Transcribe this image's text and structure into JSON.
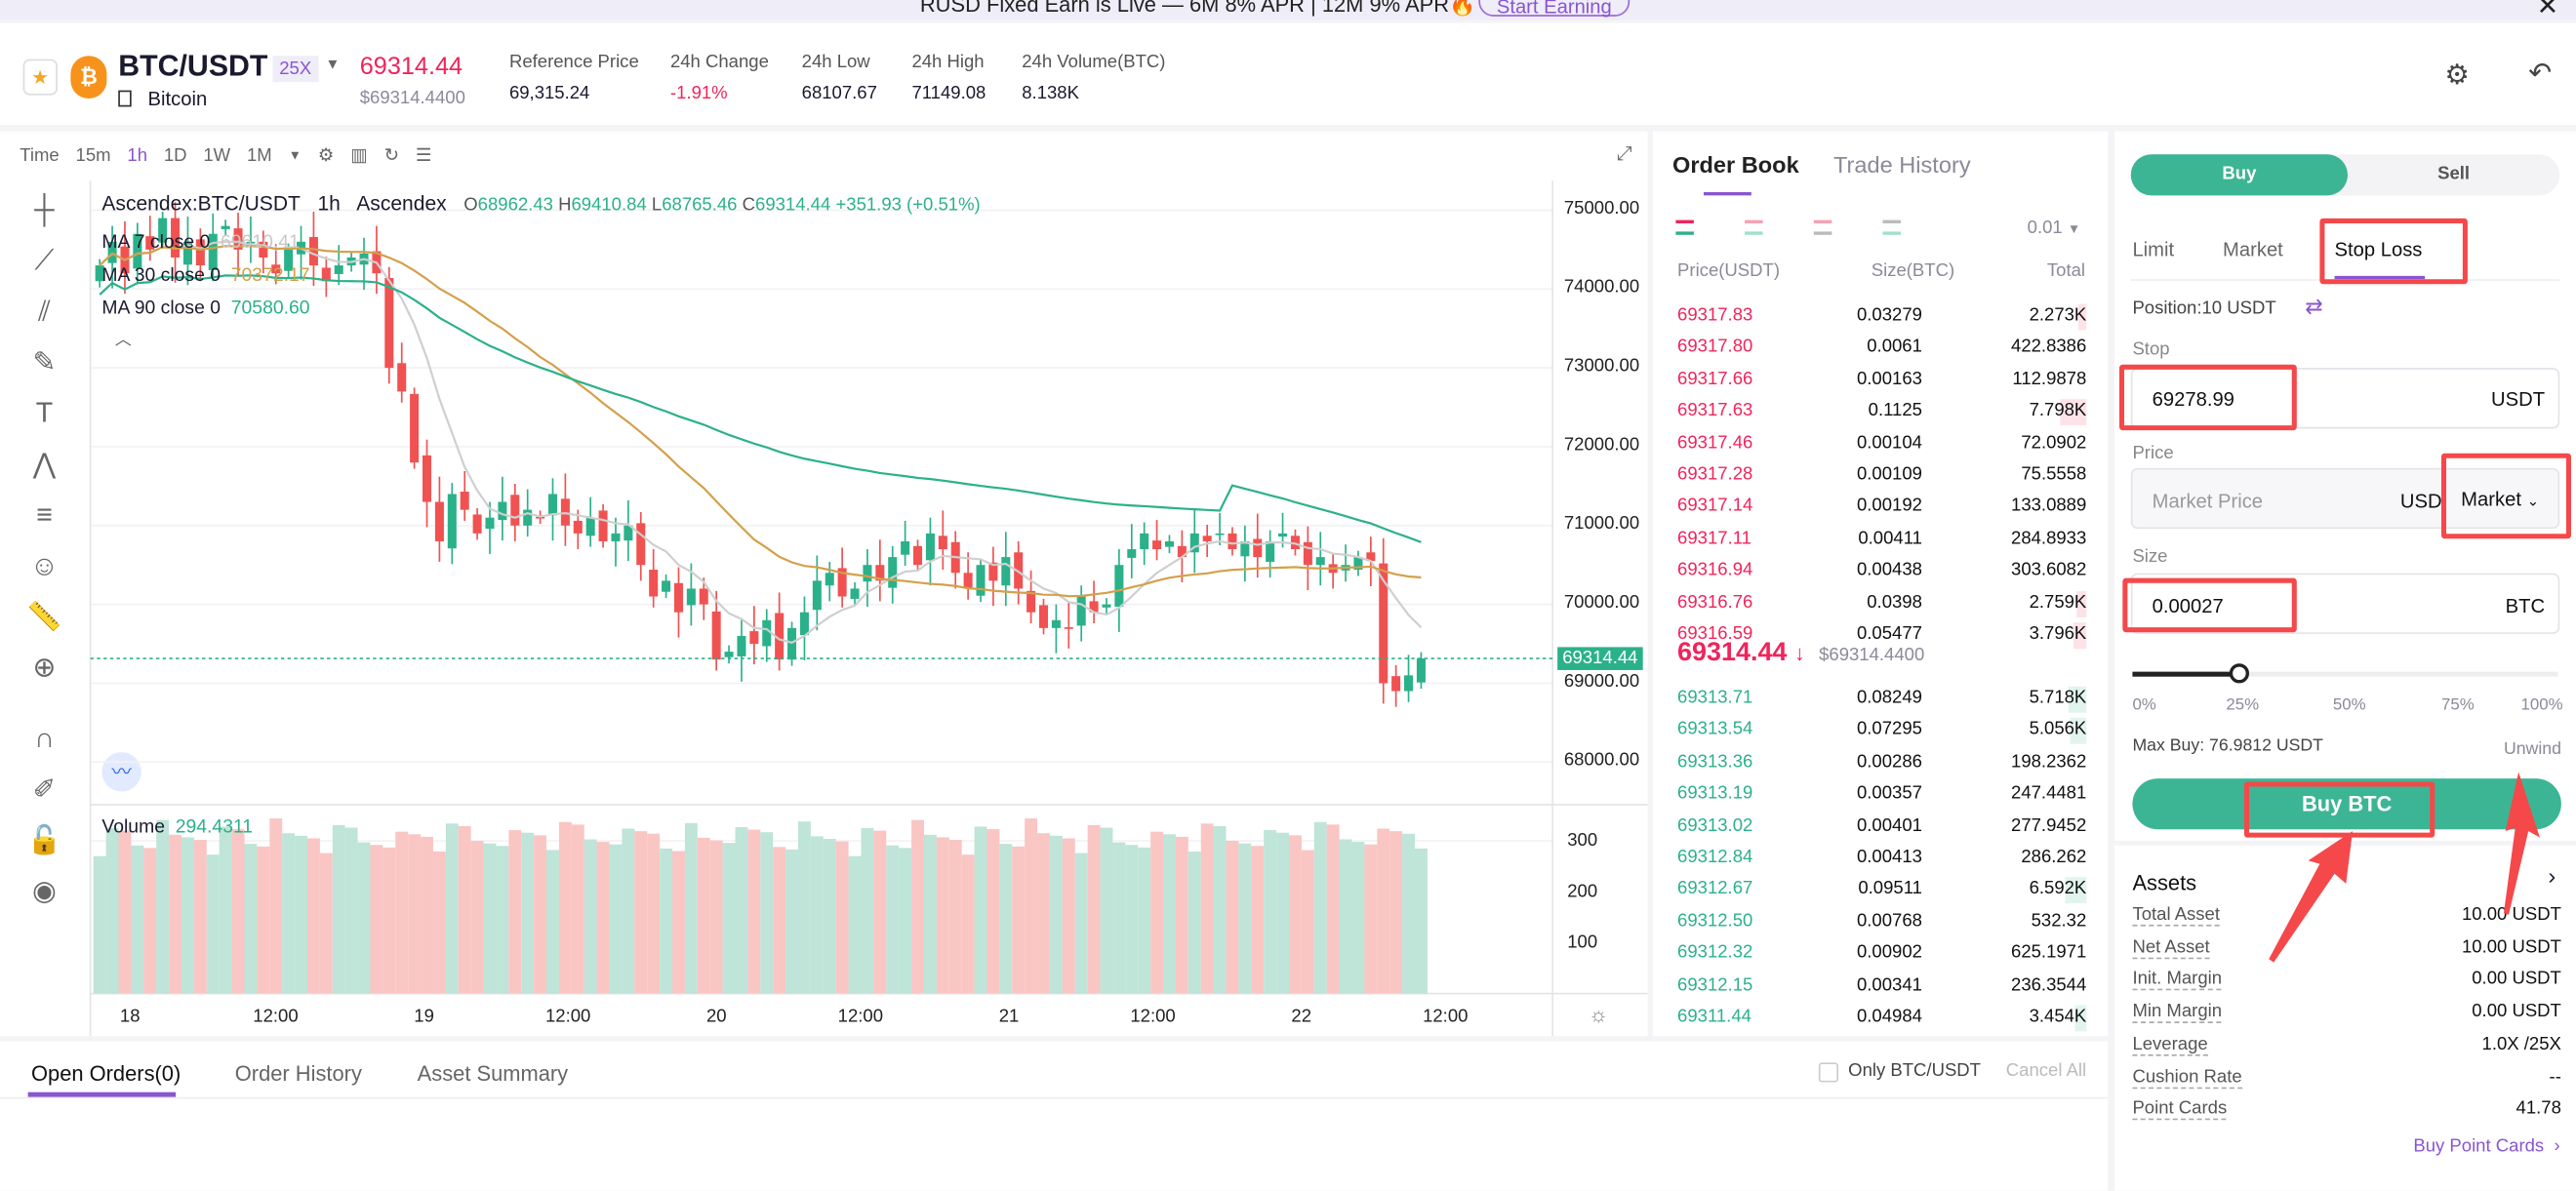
{
  "banner": {
    "text": "RUSD Fixed Earn is Live — 6M 8% APR | 12M 9% APR🔥",
    "cta": "Start Earning",
    "close": "✕"
  },
  "header": {
    "pair": "BTC/USDT",
    "leverage": "25X",
    "name": "Bitcoin",
    "price": "69314.44",
    "price_usd": "$69314.4400",
    "stats": [
      {
        "label": "Reference Price",
        "value": "69,315.24"
      },
      {
        "label": "24h Change",
        "value": "-1.91%"
      },
      {
        "label": "24h Low",
        "value": "68107.67"
      },
      {
        "label": "24h High",
        "value": "71149.08"
      },
      {
        "label": "24h Volume(BTC)",
        "value": "8.138K"
      }
    ]
  },
  "chart_toolbar": {
    "items": [
      "Time",
      "15m",
      "1h",
      "1D",
      "1W",
      "1M"
    ],
    "active": "1h"
  },
  "chart": {
    "legend_title": "Ascendex:BTC/USDT",
    "interval": "1h",
    "exchange": "Ascendex",
    "ohlc": {
      "o_label": "O",
      "o": "68962.43",
      "h_label": "H",
      "h": "69410.84",
      "l_label": "L",
      "l": "68765.46",
      "c_label": "C",
      "c": "69314.44",
      "chg": "+351.93 (+0.51%)"
    },
    "ma": [
      {
        "label": "MA 7 close 0",
        "value": "69610.41",
        "color": "#c8c8c8"
      },
      {
        "label": "MA 30 close 0",
        "value": "70372.17",
        "color": "#d4a04a"
      },
      {
        "label": "MA 90 close 0",
        "value": "70580.60",
        "color": "#2bb18a"
      }
    ],
    "volume_label": "Volume",
    "volume_value": "294.4311",
    "last_price_tag": "69314.44",
    "price_ticks": [
      "75000.00",
      "74000.00",
      "73000.00",
      "72000.00",
      "71000.00",
      "70000.00",
      "69000.00",
      "68000.00"
    ],
    "volume_ticks": [
      "300",
      "200",
      "100"
    ],
    "time_ticks": [
      "18",
      "12:00",
      "19",
      "12:00",
      "20",
      "12:00",
      "21",
      "12:00",
      "22",
      "12:00"
    ]
  },
  "chart_data": {
    "type": "candlestick",
    "ylim": [
      67500,
      75300
    ],
    "closes": [
      74300,
      74600,
      74200,
      74700,
      74500,
      74900,
      74400,
      74600,
      74300,
      74700,
      74800,
      74500,
      74600,
      74400,
      74200,
      74500,
      74600,
      74300,
      74100,
      74300,
      74400,
      74450,
      74200,
      73000,
      72700,
      71800,
      71300,
      70800,
      71400,
      71200,
      70900,
      71100,
      71300,
      71000,
      71200,
      71100,
      71400,
      71000,
      70900,
      71100,
      70800,
      70900,
      71000,
      70500,
      70100,
      70300,
      69900,
      70200,
      70000,
      69300,
      69400,
      69600,
      69500,
      69800,
      69300,
      69700,
      69900,
      70300,
      70400,
      70100,
      70200,
      70500,
      70300,
      70600,
      70800,
      70500,
      70900,
      70700,
      70400,
      70200,
      70500,
      70300,
      70600,
      70200,
      69900,
      69700,
      69800,
      69700,
      70100,
      69900,
      70000,
      70500,
      70700,
      70900,
      70700,
      70800,
      70600,
      70900,
      70800,
      70900,
      70700,
      70800,
      70600,
      70800,
      70900,
      70700,
      70500,
      70600,
      70400,
      70500,
      70600,
      70550,
      69000,
      68900,
      69100,
      69314
    ]
  },
  "orderbook": {
    "tabs": [
      "Order Book",
      "Trade History"
    ],
    "precision": "0.01",
    "headers": [
      "Price(USDT)",
      "Size(BTC)",
      "Total"
    ],
    "asks": [
      [
        "69317.83",
        "0.03279",
        "2.273K"
      ],
      [
        "69317.80",
        "0.0061",
        "422.8386"
      ],
      [
        "69317.66",
        "0.00163",
        "112.9878"
      ],
      [
        "69317.63",
        "0.1125",
        "7.798K"
      ],
      [
        "69317.46",
        "0.00104",
        "72.0902"
      ],
      [
        "69317.28",
        "0.00109",
        "75.5558"
      ],
      [
        "69317.14",
        "0.00192",
        "133.0889"
      ],
      [
        "69317.11",
        "0.00411",
        "284.8933"
      ],
      [
        "69316.94",
        "0.00438",
        "303.6082"
      ],
      [
        "69316.76",
        "0.0398",
        "2.759K"
      ],
      [
        "69316.59",
        "0.05477",
        "3.796K"
      ]
    ],
    "last": "69314.44",
    "last_arrow": "↓",
    "last_usd": "$69314.4400",
    "bids": [
      [
        "69313.71",
        "0.08249",
        "5.718K"
      ],
      [
        "69313.54",
        "0.07295",
        "5.056K"
      ],
      [
        "69313.36",
        "0.00286",
        "198.2362"
      ],
      [
        "69313.19",
        "0.00357",
        "247.4481"
      ],
      [
        "69313.02",
        "0.00401",
        "277.9452"
      ],
      [
        "69312.84",
        "0.00413",
        "286.262"
      ],
      [
        "69312.67",
        "0.09511",
        "6.592K"
      ],
      [
        "69312.50",
        "0.00768",
        "532.32"
      ],
      [
        "69312.32",
        "0.00902",
        "625.1971"
      ],
      [
        "69312.15",
        "0.00341",
        "236.3544"
      ],
      [
        "69311.44",
        "0.04984",
        "3.454K"
      ]
    ]
  },
  "trade": {
    "buy": "Buy",
    "sell": "Sell",
    "order_types": [
      "Limit",
      "Market",
      "Stop Loss"
    ],
    "active_type": "Stop Loss",
    "position": "Position:10 USDT",
    "stop_label": "Stop",
    "stop_value": "69278.99",
    "stop_unit": "USDT",
    "price_label": "Price",
    "price_placeholder": "Market Price",
    "price_unit": "USDT",
    "price_mode": "Market",
    "size_label": "Size",
    "size_value": "0.00027",
    "size_unit": "BTC",
    "slider_marks": [
      "0%",
      "25%",
      "50%",
      "75%",
      "100%"
    ],
    "slider_value_pct": 25,
    "max_buy": "Max Buy: 76.9812 USDT",
    "unwind": "Unwind",
    "submit": "Buy BTC"
  },
  "assets": {
    "title": "Assets",
    "rows": [
      [
        "Total Asset",
        "10.00 USDT"
      ],
      [
        "Net Asset",
        "10.00 USDT"
      ],
      [
        "Init. Margin",
        "0.00 USDT"
      ],
      [
        "Min Margin",
        "0.00 USDT"
      ],
      [
        "Leverage",
        "1.0X /25X"
      ],
      [
        "Cushion Rate",
        "--"
      ],
      [
        "Point Cards",
        "41.78"
      ]
    ],
    "link": "Buy Point Cards"
  },
  "bottom": {
    "tabs": [
      "Open Orders(0)",
      "Order History",
      "Asset Summary"
    ],
    "only_pair": "Only BTC/USDT",
    "cancel_all": "Cancel All"
  },
  "colors": {
    "up": "#2bb18a",
    "down": "#f0245b",
    "accent": "#8a55d0",
    "buy": "#3cb595",
    "annotation": "#f5484a"
  }
}
